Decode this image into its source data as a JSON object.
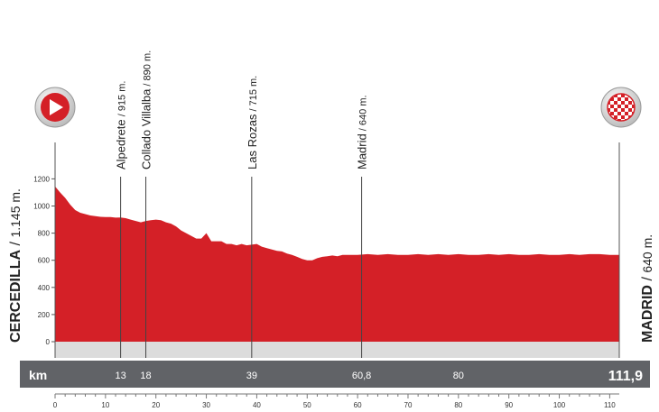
{
  "chart_data": {
    "type": "area",
    "title": "",
    "xlabel": "km",
    "ylabel": "",
    "xlim": [
      0,
      111.9
    ],
    "ylim": [
      0,
      1300
    ],
    "y_ticks": [
      0,
      200,
      400,
      600,
      800,
      1000,
      1200
    ],
    "y_tick_labels": [
      "0",
      "200",
      "400",
      "600",
      "800",
      "1000",
      "1200"
    ],
    "x_ticks": [
      0,
      10,
      20,
      30,
      40,
      50,
      60,
      70,
      80,
      90,
      100,
      110
    ],
    "x_tick_labels": [
      "0",
      "10",
      "20",
      "30",
      "40",
      "50",
      "60",
      "70",
      "80",
      "90",
      "100",
      "110"
    ],
    "grid": false,
    "fill_color": "#d42027",
    "series": [
      {
        "x": [
          0,
          1,
          2,
          3,
          4,
          5,
          6,
          7,
          8,
          9,
          10,
          11,
          12,
          13,
          14,
          15,
          16,
          17,
          18,
          19,
          20,
          21,
          22,
          23,
          24,
          25,
          26,
          27,
          28,
          29,
          30,
          31,
          32,
          33,
          34,
          35,
          36,
          37,
          38,
          39,
          40,
          41,
          42,
          43,
          44,
          45,
          46,
          47,
          48,
          49,
          50,
          51,
          52,
          53,
          54,
          55,
          56,
          57,
          58,
          59,
          60,
          62,
          64,
          66,
          68,
          70,
          72,
          74,
          76,
          78,
          80,
          82,
          84,
          86,
          88,
          90,
          92,
          94,
          96,
          98,
          100,
          102,
          104,
          106,
          108,
          110,
          111.9
        ],
        "y": [
          1145,
          1100,
          1060,
          1010,
          970,
          950,
          940,
          930,
          925,
          920,
          918,
          918,
          914,
          915,
          910,
          900,
          890,
          880,
          890,
          895,
          900,
          895,
          880,
          870,
          850,
          820,
          800,
          780,
          760,
          760,
          800,
          740,
          740,
          740,
          720,
          720,
          710,
          720,
          710,
          715,
          720,
          700,
          690,
          680,
          670,
          665,
          650,
          640,
          625,
          610,
          600,
          600,
          615,
          625,
          630,
          635,
          630,
          640,
          640,
          640,
          640,
          645,
          640,
          645,
          640,
          640,
          645,
          640,
          645,
          640,
          645,
          640,
          640,
          645,
          640,
          645,
          640,
          640,
          645,
          640,
          640,
          645,
          640,
          645,
          645,
          640,
          640
        ]
      }
    ],
    "start": {
      "name": "CERCEDILLA",
      "altitude": "1.145 m."
    },
    "finish": {
      "name": "MADRID",
      "altitude": "640 m."
    },
    "waypoints": [
      {
        "km": 13,
        "name": "Alpedrete",
        "altitude": "915 m."
      },
      {
        "km": 18,
        "name": "Collado Villalba",
        "altitude": "890 m."
      },
      {
        "km": 39,
        "name": "Las Rozas",
        "altitude": "715 m."
      },
      {
        "km": 60.8,
        "name": "Madrid",
        "altitude": "640 m."
      }
    ],
    "km_bar": {
      "label": "km",
      "marks": [
        {
          "km": 13,
          "text": "13"
        },
        {
          "km": 18,
          "text": "18"
        },
        {
          "km": 39,
          "text": "39"
        },
        {
          "km": 60.8,
          "text": "60,8"
        },
        {
          "km": 80,
          "text": "80"
        }
      ],
      "total": "111,9"
    }
  }
}
